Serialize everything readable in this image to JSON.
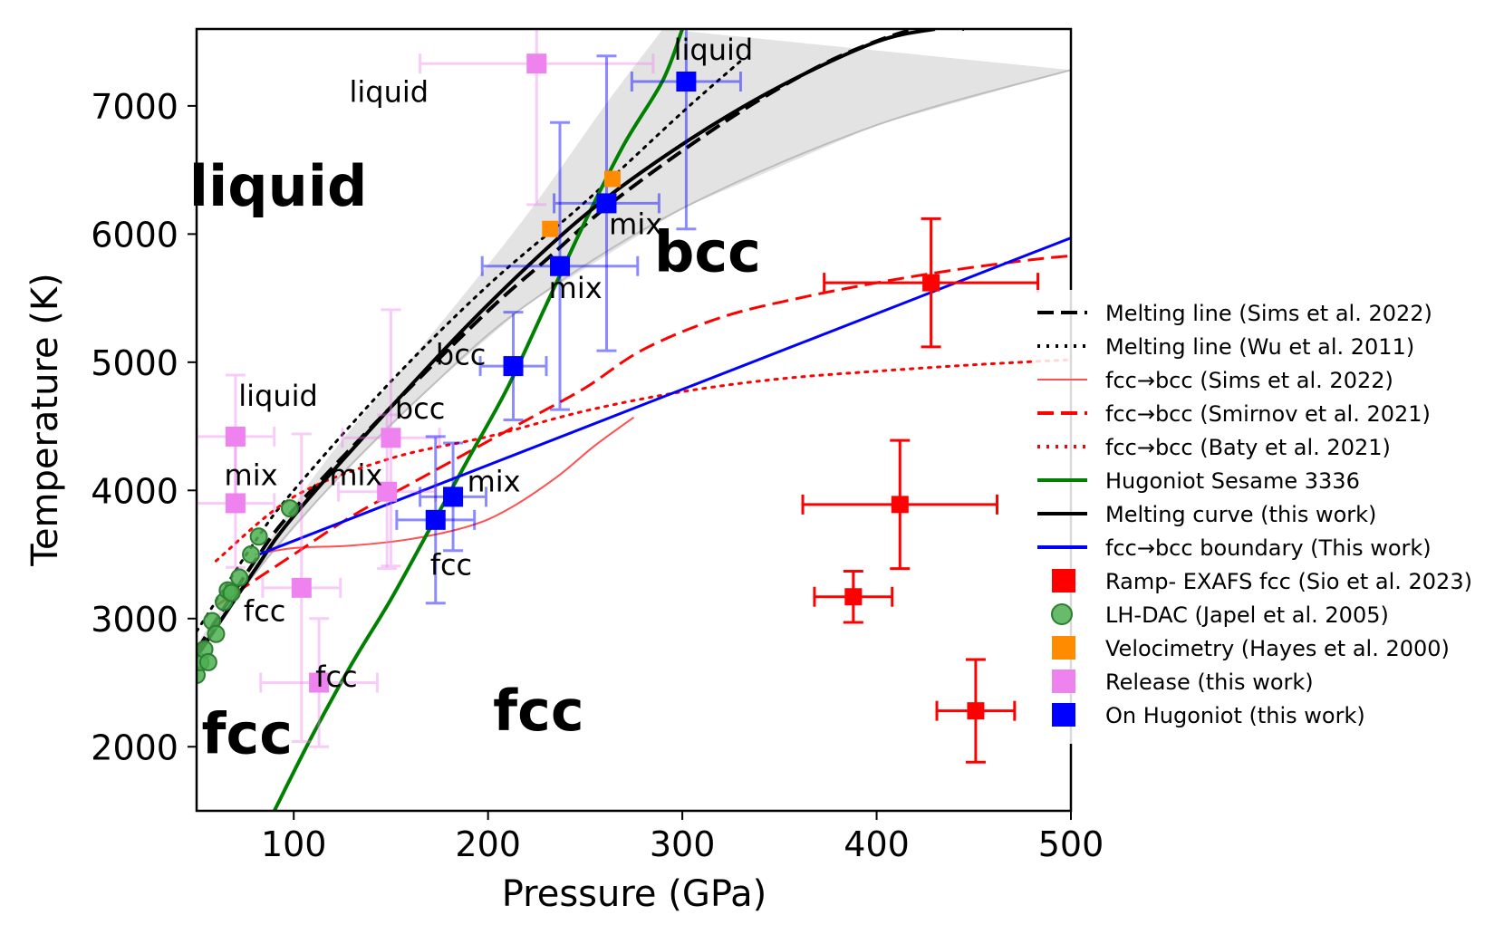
{
  "chart_data": {
    "type": "scatter",
    "title": "",
    "xlabel": "Pressure (GPa)",
    "ylabel": "Temperature (K)",
    "xlim": [
      50,
      500
    ],
    "ylim": [
      1500,
      7600
    ],
    "xticks": [
      100,
      200,
      300,
      400,
      500
    ],
    "yticks": [
      2000,
      3000,
      4000,
      5000,
      6000,
      7000
    ],
    "grid": false,
    "legend_position": "right",
    "legend": [
      {
        "label": "Melting line (Sims et al. 2022)",
        "kind": "line",
        "color": "#000000",
        "style": "dashed"
      },
      {
        "label": "Melting line (Wu et al. 2011)",
        "kind": "line",
        "color": "#000000",
        "style": "dotted"
      },
      {
        "label": "fcc→bcc (Sims et al. 2022)",
        "kind": "line",
        "color": "#ff5050",
        "style": "thin"
      },
      {
        "label": "fcc→bcc (Smirnov et al. 2021)",
        "kind": "line",
        "color": "#ff0000",
        "style": "dashed"
      },
      {
        "label": "fcc→bcc (Baty et al. 2021)",
        "kind": "line",
        "color": "#ff0000",
        "style": "dotted"
      },
      {
        "label": "Hugoniot Sesame 3336",
        "kind": "line",
        "color": "#008000",
        "style": "solid"
      },
      {
        "label": "Melting curve (this work)",
        "kind": "line",
        "color": "#000000",
        "style": "solid"
      },
      {
        "label": "fcc→bcc boundary (This work)",
        "kind": "line",
        "color": "#0000ff",
        "style": "solid"
      },
      {
        "label": "Ramp- EXAFS fcc (Sio et al. 2023)",
        "kind": "square",
        "color": "#ff0000"
      },
      {
        "label": "LH-DAC (Japel et al. 2005)",
        "kind": "circle",
        "color": "#4caf50"
      },
      {
        "label": "Velocimetry (Hayes et al. 2000)",
        "kind": "square",
        "color": "#ff8c00"
      },
      {
        "label": "Release (this work)",
        "kind": "square",
        "color": "#ee82ee"
      },
      {
        "label": "On Hugoniot (this work)",
        "kind": "square",
        "color": "#0000ff"
      }
    ],
    "band": {
      "name": "melting uncertainty",
      "color": "#e3e3e3",
      "upper": [
        [
          50,
          2800
        ],
        [
          80,
          3450
        ],
        [
          120,
          4300
        ],
        [
          170,
          5200
        ],
        [
          220,
          6150
        ],
        [
          260,
          7000
        ],
        [
          290,
          7600
        ]
      ],
      "lower": [
        [
          50,
          2700
        ],
        [
          80,
          3350
        ],
        [
          120,
          4050
        ],
        [
          170,
          4800
        ],
        [
          220,
          5450
        ],
        [
          300,
          6200
        ],
        [
          400,
          6850
        ],
        [
          500,
          7280
        ]
      ]
    },
    "series": [
      {
        "name": "Melting line (Sims et al. 2022)",
        "color": "#000000",
        "style": "dashed",
        "width": 4,
        "x": [
          50,
          80,
          100,
          150,
          200,
          230,
          260,
          300,
          340,
          380,
          420,
          445
        ],
        "y": [
          2750,
          3450,
          3850,
          4650,
          5400,
          5800,
          6200,
          6650,
          7050,
          7380,
          7600,
          7600
        ]
      },
      {
        "name": "Melting line (Wu et al. 2011)",
        "color": "#000000",
        "style": "dotted",
        "width": 3,
        "x": [
          50,
          80,
          100,
          150,
          200,
          250,
          300,
          330
        ],
        "y": [
          2900,
          3600,
          4000,
          4850,
          5600,
          6250,
          6950,
          7350
        ]
      },
      {
        "name": "fcc→bcc (Sims et al. 2022)",
        "color": "#ff5050",
        "style": "thin",
        "width": 2,
        "x": [
          80,
          100,
          130,
          160,
          190,
          210,
          235,
          255,
          275
        ],
        "y": [
          3500,
          3550,
          3570,
          3620,
          3720,
          3850,
          4100,
          4350,
          4570
        ]
      },
      {
        "name": "fcc→bcc (Smirnov et al. 2021)",
        "color": "#ff0000",
        "style": "dashed",
        "width": 3,
        "x": [
          60,
          80,
          100,
          130,
          160,
          190,
          220,
          250,
          280,
          320,
          360,
          400,
          440,
          480,
          500
        ],
        "y": [
          3100,
          3300,
          3500,
          3800,
          4050,
          4300,
          4550,
          4800,
          5100,
          5350,
          5500,
          5620,
          5720,
          5800,
          5830
        ]
      },
      {
        "name": "fcc→bcc (Baty et al. 2021)",
        "color": "#ff0000",
        "style": "dotted",
        "width": 3,
        "x": [
          60,
          100,
          150,
          200,
          250,
          300,
          350,
          400,
          450,
          500
        ],
        "y": [
          3450,
          3950,
          4250,
          4420,
          4620,
          4770,
          4870,
          4930,
          4980,
          5020
        ]
      },
      {
        "name": "Hugoniot Sesame 3336",
        "color": "#008000",
        "style": "solid",
        "width": 4,
        "x": [
          90,
          110,
          130,
          150,
          170,
          190,
          210,
          230,
          250,
          270,
          290,
          300
        ],
        "y": [
          1500,
          2100,
          2650,
          3150,
          3700,
          4250,
          4800,
          5450,
          6100,
          6700,
          7200,
          7600
        ]
      },
      {
        "name": "Melting curve (this work)",
        "color": "#000000",
        "style": "solid",
        "width": 4,
        "x": [
          50,
          80,
          100,
          150,
          200,
          250,
          300,
          350,
          400,
          430
        ],
        "y": [
          2700,
          3380,
          3800,
          4650,
          5450,
          6150,
          6700,
          7150,
          7500,
          7600
        ]
      },
      {
        "name": "fcc→bcc boundary (This work)",
        "color": "#0000ff",
        "style": "solid",
        "width": 3,
        "x": [
          82,
          500
        ],
        "y": [
          3500,
          5970
        ]
      }
    ],
    "points": {
      "ramp_exafs": {
        "name": "Ramp- EXAFS fcc (Sio et al. 2023)",
        "color": "#ff0000",
        "data": [
          {
            "x": 428,
            "y": 5620,
            "xerr": 55,
            "yerr": 500
          },
          {
            "x": 412,
            "y": 3890,
            "xerr": 50,
            "yerr": 500
          },
          {
            "x": 388,
            "y": 3170,
            "xerr": 20,
            "yerr": 200
          },
          {
            "x": 451,
            "y": 2280,
            "xerr": 20,
            "yerr": 400
          }
        ]
      },
      "lh_dac": {
        "name": "LH-DAC (Japel et al. 2005)",
        "color": "#4caf50",
        "data": [
          {
            "x": 50,
            "y": 2560
          },
          {
            "x": 52,
            "y": 2660
          },
          {
            "x": 54,
            "y": 2760
          },
          {
            "x": 56,
            "y": 2660
          },
          {
            "x": 58,
            "y": 2980
          },
          {
            "x": 60,
            "y": 2880
          },
          {
            "x": 64,
            "y": 3130
          },
          {
            "x": 66,
            "y": 3220
          },
          {
            "x": 68,
            "y": 3200
          },
          {
            "x": 72,
            "y": 3320
          },
          {
            "x": 78,
            "y": 3500
          },
          {
            "x": 82,
            "y": 3640
          },
          {
            "x": 98,
            "y": 3860
          }
        ]
      },
      "velocimetry": {
        "name": "Velocimetry (Hayes et al. 2000)",
        "color": "#ff8c00",
        "data": [
          {
            "x": 232,
            "y": 6040
          },
          {
            "x": 264,
            "y": 6430
          }
        ]
      },
      "release": {
        "name": "Release (this work)",
        "color": "#ee82ee",
        "data": [
          {
            "x": 70,
            "y": 4420,
            "xerr": 20,
            "yerr": 480
          },
          {
            "x": 70,
            "y": 3900,
            "xerr": 20,
            "yerr": 500
          },
          {
            "x": 104,
            "y": 3240,
            "xerr": 20,
            "yerr": 1200
          },
          {
            "x": 113,
            "y": 2500,
            "xerr": 30,
            "yerr": 500
          },
          {
            "x": 148,
            "y": 3990,
            "xerr": 25,
            "yerr": 600
          },
          {
            "x": 150,
            "y": 4410,
            "xerr": 25,
            "yerr": 1000
          },
          {
            "x": 225,
            "y": 7330,
            "xerr": 60,
            "yerr": 1100
          }
        ]
      },
      "on_hugoniot": {
        "name": "On Hugoniot (this work)",
        "color": "#0000ff",
        "data": [
          {
            "x": 302,
            "y": 7190,
            "xerr": 28,
            "yerr": 1150
          },
          {
            "x": 261,
            "y": 6240,
            "xerr": 27,
            "yerr": 1150
          },
          {
            "x": 237,
            "y": 5750,
            "xerr": 40,
            "yerr": 1120
          },
          {
            "x": 213,
            "y": 4970,
            "xerr": 17,
            "yerr": 420
          },
          {
            "x": 182,
            "y": 3950,
            "xerr": 17,
            "yerr": 420
          },
          {
            "x": 173,
            "y": 3770,
            "xerr": 20,
            "yerr": 650
          }
        ]
      }
    },
    "annotations": [
      {
        "text": "liquid",
        "x": 316,
        "y": 7360,
        "size": "small"
      },
      {
        "text": "liquid",
        "x": 149,
        "y": 7030,
        "size": "small"
      },
      {
        "text": "liquid",
        "x": 92,
        "y": 6220,
        "size": "large"
      },
      {
        "text": "bcc",
        "x": 313,
        "y": 5710,
        "size": "large"
      },
      {
        "text": "mix",
        "x": 276,
        "y": 6000,
        "size": "small"
      },
      {
        "text": "mix",
        "x": 245,
        "y": 5500,
        "size": "small"
      },
      {
        "text": "bcc",
        "x": 186,
        "y": 4980,
        "size": "small"
      },
      {
        "text": "liquid",
        "x": 92,
        "y": 4660,
        "size": "small"
      },
      {
        "text": "bcc",
        "x": 165,
        "y": 4560,
        "size": "small"
      },
      {
        "text": "mix",
        "x": 78,
        "y": 4040,
        "size": "small"
      },
      {
        "text": "mix",
        "x": 132,
        "y": 4040,
        "size": "small"
      },
      {
        "text": "mix",
        "x": 203,
        "y": 3990,
        "size": "small"
      },
      {
        "text": "fcc",
        "x": 181,
        "y": 3340,
        "size": "small"
      },
      {
        "text": "fcc",
        "x": 85,
        "y": 2980,
        "size": "small"
      },
      {
        "text": "fcc",
        "x": 122,
        "y": 2470,
        "size": "small"
      },
      {
        "text": "fcc",
        "x": 76,
        "y": 1950,
        "size": "large"
      },
      {
        "text": "fcc",
        "x": 226,
        "y": 2130,
        "size": "large"
      }
    ]
  }
}
